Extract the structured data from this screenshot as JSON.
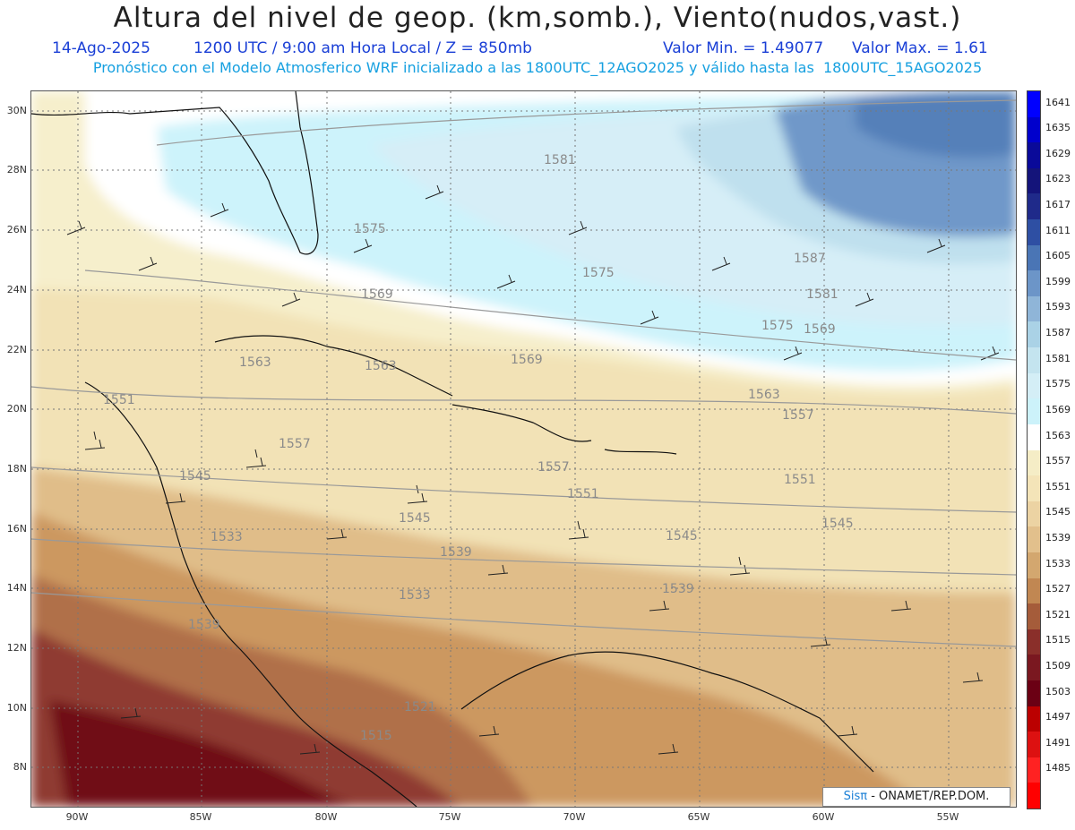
{
  "header": {
    "title": "Altura del nivel de geop. (km,somb.), Viento(nudos,vast.)",
    "date": "14-Ago-2025",
    "time": "1200 UTC / 9:00 am Hora Local / Z = 850mb",
    "min": "Valor Min. = 1.49077",
    "max": "Valor Max. = 1.61",
    "model": "Pronóstico con el Modelo Atmosferico WRF inicializado a las 1800UTC_12AGO2025 y válido hasta las  1800UTC_15AGO2025"
  },
  "lat_labels": [
    "30N",
    "28N",
    "26N",
    "24N",
    "22N",
    "20N",
    "18N",
    "16N",
    "14N",
    "12N",
    "10N",
    "8N"
  ],
  "lon_labels": [
    "90W",
    "85W",
    "80W",
    "75W",
    "70W",
    "65W",
    "60W",
    "55W"
  ],
  "contour_labels": [
    "1581",
    "1575",
    "1575",
    "1569",
    "1587",
    "1581",
    "1575",
    "1569",
    "1563",
    "1563",
    "1569",
    "1563",
    "1557",
    "1551",
    "1557",
    "1545",
    "1557",
    "1551",
    "1551",
    "1545",
    "1545",
    "1539",
    "1545",
    "1539",
    "1533",
    "1539",
    "1533",
    "1521",
    "1515"
  ],
  "colorbar": {
    "labels": [
      "1641",
      "1635",
      "1629",
      "1623",
      "1617",
      "1611",
      "1605",
      "1599",
      "1593",
      "1587",
      "1581",
      "1575",
      "1569",
      "1563",
      "1557",
      "1551",
      "1545",
      "1539",
      "1533",
      "1527",
      "1521",
      "1515",
      "1509",
      "1503",
      "1497",
      "1491",
      "1485"
    ],
    "colors": [
      "#0000ff",
      "#0000cc",
      "#0a0a99",
      "#14147a",
      "#1f2a8a",
      "#2e4fa3",
      "#4a75b5",
      "#6c95c8",
      "#8fb5d8",
      "#aad2e6",
      "#c4e4ef",
      "#d4eef6",
      "#ccf2fa",
      "#ffffff",
      "#f5edc6",
      "#f4e4b8",
      "#ecd3a3",
      "#e2c08c",
      "#d3a76f",
      "#c18752",
      "#a55c3a",
      "#8a2f2a",
      "#7a1820",
      "#6b0014",
      "#bb0000",
      "#dd1111",
      "#ff2222"
    ]
  },
  "credit": {
    "brand": "Sisπ",
    "text": " - ONAMET/REP.DOM."
  }
}
